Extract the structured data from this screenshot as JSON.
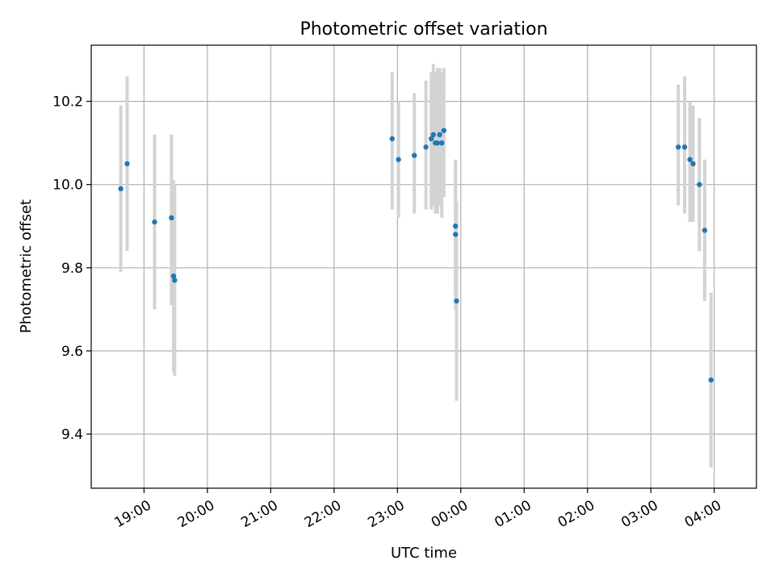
{
  "chart_data": {
    "type": "scatter",
    "title": "Photometric offset variation",
    "xlabel": "UTC time",
    "ylabel": "Photometric offset",
    "x_ticks": [
      "19:00",
      "20:00",
      "21:00",
      "22:00",
      "23:00",
      "00:00",
      "01:00",
      "02:00",
      "03:00",
      "04:00"
    ],
    "y_ticks": [
      "9.4",
      "9.6",
      "9.8",
      "10.0",
      "10.2"
    ],
    "xlim": [
      "18:10",
      "04:40"
    ],
    "ylim": [
      9.27,
      10.335
    ],
    "grid": true,
    "colors": {
      "point": "#1f77b4",
      "errorbar": "#d3d3d3"
    },
    "points": [
      {
        "t": "18:38",
        "y": 9.99,
        "lo": 9.79,
        "hi": 10.19
      },
      {
        "t": "18:44",
        "y": 10.05,
        "lo": 9.84,
        "hi": 10.26
      },
      {
        "t": "19:10",
        "y": 9.91,
        "lo": 9.7,
        "hi": 10.12
      },
      {
        "t": "19:26",
        "y": 9.92,
        "lo": 9.71,
        "hi": 10.12
      },
      {
        "t": "19:28",
        "y": 9.78,
        "lo": 9.55,
        "hi": 10.01
      },
      {
        "t": "19:29",
        "y": 9.77,
        "lo": 9.54,
        "hi": 10.0
      },
      {
        "t": "22:55",
        "y": 10.11,
        "lo": 9.94,
        "hi": 10.27
      },
      {
        "t": "23:01",
        "y": 10.06,
        "lo": 9.92,
        "hi": 10.2
      },
      {
        "t": "23:16",
        "y": 10.07,
        "lo": 9.93,
        "hi": 10.22
      },
      {
        "t": "23:27",
        "y": 10.09,
        "lo": 9.94,
        "hi": 10.25
      },
      {
        "t": "23:32",
        "y": 10.11,
        "lo": 9.94,
        "hi": 10.27
      },
      {
        "t": "23:34",
        "y": 10.12,
        "lo": 9.95,
        "hi": 10.29
      },
      {
        "t": "23:36",
        "y": 10.1,
        "lo": 9.93,
        "hi": 10.27
      },
      {
        "t": "23:38",
        "y": 10.1,
        "lo": 9.93,
        "hi": 10.28
      },
      {
        "t": "23:40",
        "y": 10.12,
        "lo": 9.95,
        "hi": 10.28
      },
      {
        "t": "23:42",
        "y": 10.1,
        "lo": 9.92,
        "hi": 10.27
      },
      {
        "t": "23:44",
        "y": 10.13,
        "lo": 9.97,
        "hi": 10.28
      },
      {
        "t": "23:55",
        "y": 9.9,
        "lo": 9.74,
        "hi": 10.06
      },
      {
        "t": "23:55",
        "y": 9.88,
        "lo": 9.7,
        "hi": 10.05
      },
      {
        "t": "23:56",
        "y": 9.72,
        "lo": 9.48,
        "hi": 9.96
      },
      {
        "t": "03:26",
        "y": 10.09,
        "lo": 9.95,
        "hi": 10.24
      },
      {
        "t": "03:32",
        "y": 10.09,
        "lo": 9.93,
        "hi": 10.26
      },
      {
        "t": "03:37",
        "y": 10.06,
        "lo": 9.91,
        "hi": 10.2
      },
      {
        "t": "03:40",
        "y": 10.05,
        "lo": 9.91,
        "hi": 10.19
      },
      {
        "t": "03:46",
        "y": 10.0,
        "lo": 9.84,
        "hi": 10.16
      },
      {
        "t": "03:51",
        "y": 9.89,
        "lo": 9.72,
        "hi": 10.06
      },
      {
        "t": "03:57",
        "y": 9.53,
        "lo": 9.32,
        "hi": 9.74
      }
    ]
  }
}
